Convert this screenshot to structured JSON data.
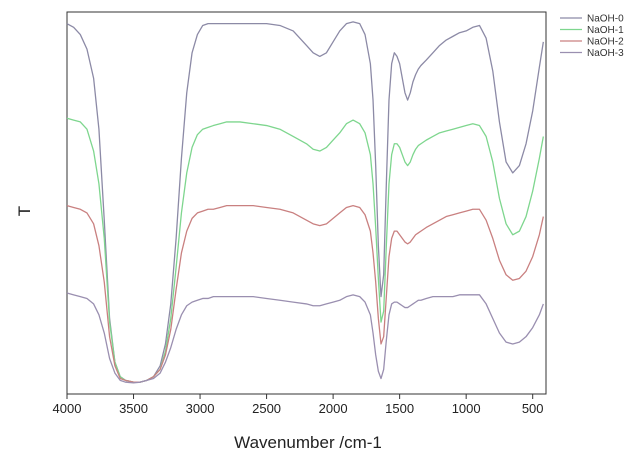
{
  "chart_data": {
    "type": "line",
    "title": "",
    "xlabel": "Wavenumber /cm-1",
    "ylabel": "T",
    "xlim": [
      4000,
      400
    ],
    "x_reversed": true,
    "ylim": [
      0,
      100
    ],
    "y_ticks_labeled": false,
    "x_ticks": [
      4000,
      3500,
      3000,
      2500,
      2000,
      1500,
      1000,
      500
    ],
    "x_tick_labels": [
      "4000",
      "3500",
      "3000",
      "2500",
      "2000",
      "1500",
      "1000",
      "500"
    ],
    "grid": false,
    "legend_position": "top-right (outside plot)",
    "series": [
      {
        "name": "NaOH-0",
        "color": "#8c8aa6",
        "x": [
          4000,
          3950,
          3900,
          3850,
          3800,
          3760,
          3720,
          3680,
          3640,
          3600,
          3560,
          3500,
          3450,
          3400,
          3350,
          3300,
          3260,
          3220,
          3180,
          3140,
          3100,
          3060,
          3020,
          2980,
          2940,
          2900,
          2850,
          2800,
          2700,
          2600,
          2500,
          2400,
          2300,
          2200,
          2150,
          2100,
          2050,
          2000,
          1950,
          1900,
          1850,
          1800,
          1760,
          1720,
          1700,
          1680,
          1660,
          1640,
          1620,
          1600,
          1580,
          1560,
          1540,
          1520,
          1500,
          1480,
          1460,
          1440,
          1420,
          1400,
          1380,
          1360,
          1340,
          1300,
          1250,
          1200,
          1150,
          1100,
          1050,
          1000,
          950,
          900,
          850,
          800,
          750,
          700,
          650,
          600,
          550,
          500,
          450,
          420
        ],
        "y": [
          99,
          98,
          96,
          92,
          84,
          70,
          45,
          18,
          6,
          2,
          1,
          0.5,
          0.5,
          1,
          2,
          5,
          11,
          22,
          40,
          62,
          80,
          91,
          96,
          98.5,
          99,
          99,
          99,
          99,
          99,
          99,
          99,
          98.5,
          97,
          93,
          91,
          90,
          91,
          94,
          97,
          99,
          99.5,
          99,
          96,
          88,
          78,
          60,
          38,
          24,
          30,
          55,
          78,
          88,
          91,
          90,
          88,
          84,
          80,
          78,
          80,
          83,
          85,
          86.5,
          87.5,
          89,
          91,
          93,
          94.5,
          95.5,
          96.5,
          97,
          98,
          98.5,
          95,
          86,
          72,
          61,
          58,
          60,
          66,
          75,
          87,
          94
        ]
      },
      {
        "name": "NaOH-1",
        "color": "#7ed68e",
        "x": [
          4000,
          3950,
          3900,
          3850,
          3800,
          3760,
          3720,
          3680,
          3640,
          3600,
          3560,
          3500,
          3450,
          3400,
          3350,
          3300,
          3260,
          3220,
          3180,
          3140,
          3100,
          3060,
          3020,
          2980,
          2940,
          2900,
          2850,
          2800,
          2700,
          2600,
          2500,
          2400,
          2300,
          2200,
          2150,
          2100,
          2050,
          2000,
          1950,
          1900,
          1850,
          1800,
          1760,
          1720,
          1700,
          1680,
          1660,
          1640,
          1620,
          1600,
          1580,
          1560,
          1540,
          1520,
          1500,
          1480,
          1460,
          1440,
          1420,
          1400,
          1380,
          1360,
          1340,
          1300,
          1250,
          1200,
          1150,
          1100,
          1050,
          1000,
          950,
          900,
          850,
          800,
          750,
          700,
          650,
          600,
          550,
          500,
          450,
          420
        ],
        "y": [
          73,
          72.5,
          72,
          70,
          64,
          55,
          40,
          17,
          6,
          2,
          1,
          0.5,
          0.5,
          1,
          2,
          4,
          9,
          18,
          32,
          47,
          58,
          65,
          68.5,
          70,
          70.5,
          71,
          71.5,
          72,
          72,
          71.5,
          71,
          70,
          68,
          66,
          64.5,
          64,
          65,
          67,
          69,
          71.5,
          72.5,
          71.5,
          69,
          63,
          55,
          43,
          29,
          17,
          20,
          38,
          55,
          63,
          66,
          66,
          65,
          63,
          61,
          60,
          61,
          63,
          64.5,
          65.5,
          66,
          67,
          68,
          69,
          69.5,
          70,
          70.5,
          71,
          71.5,
          71,
          68,
          61,
          51,
          44,
          41,
          42,
          46,
          53,
          62,
          68
        ]
      },
      {
        "name": "NaOH-2",
        "color": "#c98080",
        "x": [
          4000,
          3950,
          3900,
          3850,
          3800,
          3760,
          3720,
          3680,
          3640,
          3600,
          3560,
          3500,
          3450,
          3400,
          3350,
          3300,
          3260,
          3220,
          3180,
          3140,
          3100,
          3060,
          3020,
          2980,
          2940,
          2900,
          2850,
          2800,
          2700,
          2600,
          2500,
          2400,
          2300,
          2200,
          2150,
          2100,
          2050,
          2000,
          1950,
          1900,
          1850,
          1800,
          1760,
          1720,
          1700,
          1680,
          1660,
          1640,
          1620,
          1600,
          1580,
          1560,
          1540,
          1520,
          1500,
          1480,
          1460,
          1440,
          1420,
          1400,
          1380,
          1360,
          1340,
          1300,
          1250,
          1200,
          1150,
          1100,
          1050,
          1000,
          950,
          900,
          850,
          800,
          750,
          700,
          650,
          600,
          550,
          500,
          450,
          420
        ],
        "y": [
          49,
          48.5,
          48,
          47,
          44,
          38,
          28,
          13,
          5,
          1.5,
          1,
          0.5,
          0.5,
          1,
          2,
          4,
          8,
          15,
          26,
          36,
          42,
          45.5,
          47,
          47.5,
          48,
          48,
          48.5,
          49,
          49,
          49,
          48.5,
          48,
          47,
          45,
          44,
          43.5,
          44,
          45.5,
          47,
          48.5,
          49,
          48.5,
          46.5,
          42,
          36,
          28,
          18,
          11,
          13,
          24,
          35,
          40,
          42,
          42,
          41,
          40,
          39,
          38.5,
          39,
          40,
          41,
          41.5,
          42,
          43,
          44,
          45,
          46,
          46.5,
          47,
          47.5,
          48,
          48,
          45,
          40,
          34,
          30,
          28.5,
          29,
          31,
          35,
          41,
          46
        ]
      },
      {
        "name": "NaOH-3",
        "color": "#9a8fb0",
        "x": [
          4000,
          3950,
          3900,
          3850,
          3800,
          3760,
          3720,
          3680,
          3640,
          3600,
          3560,
          3500,
          3450,
          3400,
          3350,
          3300,
          3260,
          3220,
          3180,
          3140,
          3100,
          3060,
          3020,
          2980,
          2940,
          2900,
          2850,
          2800,
          2700,
          2600,
          2500,
          2400,
          2300,
          2200,
          2150,
          2100,
          2050,
          2000,
          1950,
          1900,
          1850,
          1800,
          1760,
          1720,
          1700,
          1680,
          1660,
          1640,
          1620,
          1600,
          1580,
          1560,
          1540,
          1520,
          1500,
          1480,
          1460,
          1440,
          1420,
          1400,
          1380,
          1360,
          1340,
          1300,
          1250,
          1200,
          1150,
          1100,
          1050,
          1000,
          950,
          900,
          850,
          800,
          750,
          700,
          650,
          600,
          550,
          500,
          450,
          420
        ],
        "y": [
          25,
          24.5,
          24,
          23.5,
          22,
          19,
          14,
          7,
          3,
          1,
          0.5,
          0.3,
          0.5,
          1,
          1.5,
          3,
          6,
          10,
          15,
          19,
          21.5,
          22.5,
          23,
          23.5,
          23.5,
          24,
          24,
          24,
          24,
          24,
          23.5,
          23,
          22.5,
          22,
          21.5,
          21.5,
          22,
          22.5,
          23,
          24,
          24.5,
          24,
          22.5,
          19,
          14,
          8,
          3.5,
          1.5,
          4,
          12,
          19,
          22,
          22.5,
          22.5,
          22,
          21.5,
          21,
          21,
          21.5,
          22,
          22.5,
          23,
          23,
          23.5,
          24,
          24,
          24,
          24,
          24.5,
          24.5,
          24.5,
          24.5,
          22,
          18,
          14,
          11.5,
          11,
          11.5,
          13,
          15.5,
          19,
          22
        ]
      }
    ]
  }
}
